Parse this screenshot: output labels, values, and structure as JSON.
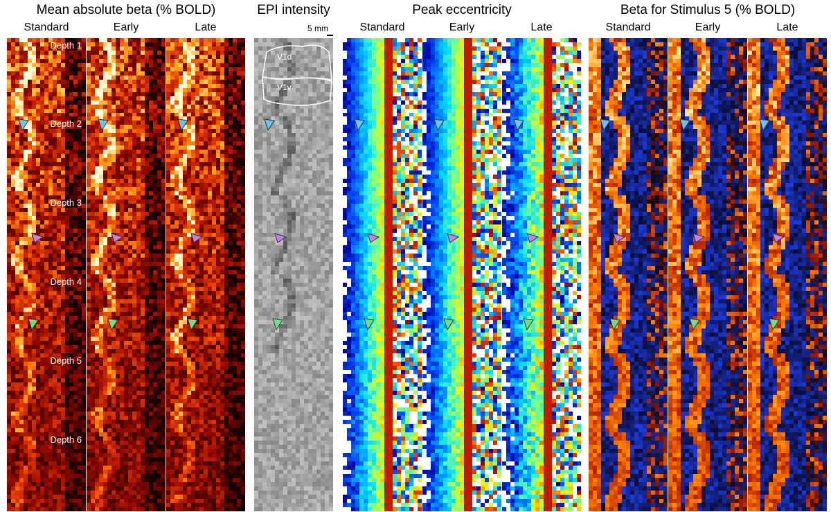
{
  "groups": [
    {
      "key": "mab",
      "title": "Mean absolute beta (% BOLD)",
      "columns": [
        "Standard",
        "Early",
        "Late"
      ],
      "style": "heat"
    },
    {
      "key": "epi",
      "title": "EPI intensity",
      "columns": [
        ""
      ],
      "style": "gray"
    },
    {
      "key": "ecc",
      "title": "Peak eccentricity",
      "columns": [
        "Standard",
        "Early",
        "Late"
      ],
      "style": "jet"
    },
    {
      "key": "beta5",
      "title": "Beta for Stimulus 5 (% BOLD)",
      "columns": [
        "Standard",
        "Early",
        "Late"
      ],
      "style": "bwr"
    }
  ],
  "depths": [
    "Depth 1",
    "Depth 2",
    "Depth 3",
    "Depth 4",
    "Depth 5",
    "Depth 6"
  ],
  "scale_bar": "5 mm",
  "roi_labels": [
    "V1d",
    "V1v"
  ],
  "arrows": [
    {
      "depth_index": 1,
      "color": "#69c6ee",
      "name": "blue-arrowhead"
    },
    {
      "depth_index": 2,
      "color": "#c97de8",
      "name": "purple-arrowhead"
    },
    {
      "depth_index": 3,
      "color": "#6fdd88",
      "name": "green-arrowhead"
    }
  ]
}
